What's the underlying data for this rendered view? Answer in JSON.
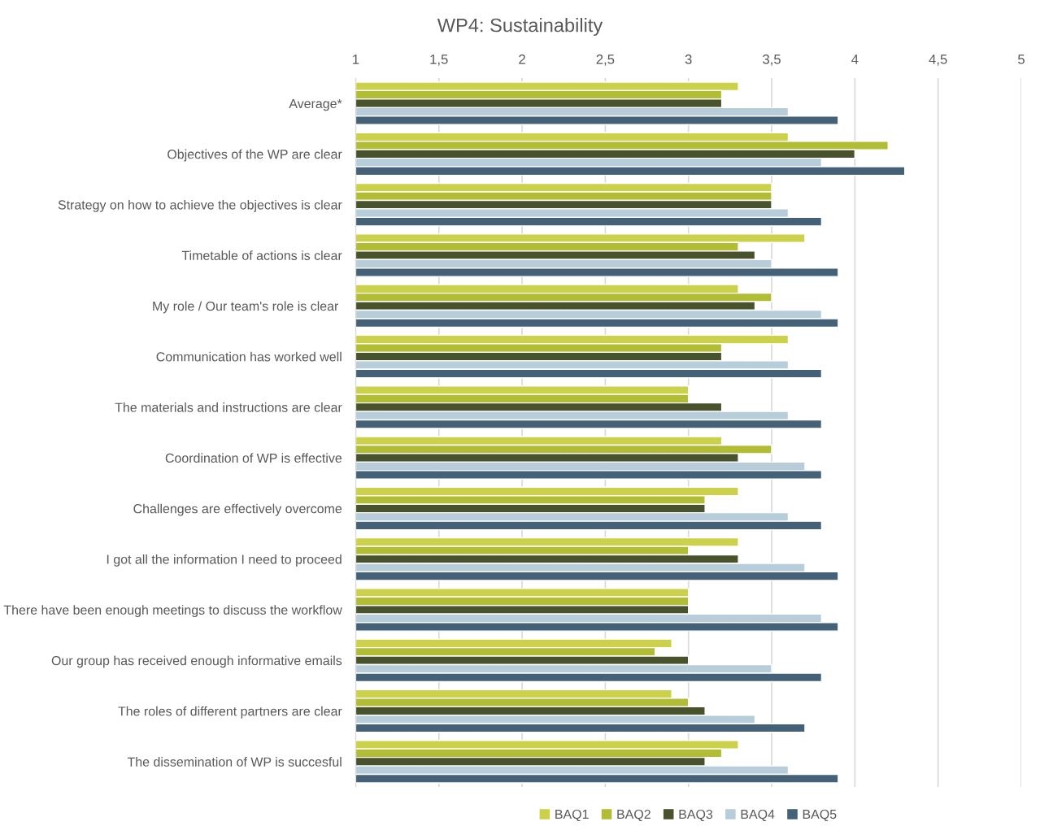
{
  "chart_data": {
    "type": "bar",
    "orientation": "horizontal",
    "title": "WP4: Sustainability",
    "categories": [
      "Average*",
      "Objectives of the WP are clear",
      "Strategy on how to achieve the objectives is clear",
      "Timetable of actions is clear",
      "My role / Our team's role is clear ",
      "Communication has worked well",
      "The materials and instructions are clear",
      "Coordination of WP is effective",
      "Challenges are effectively overcome",
      "I got all the information I need to proceed",
      "There have been enough meetings to discuss the workflow",
      "Our group has received enough informative emails",
      "The roles of different partners are clear",
      "The dissemination of WP is succesful"
    ],
    "series": [
      {
        "name": "BAQ1",
        "color": "#cbd14a",
        "values": [
          3.3,
          3.6,
          3.5,
          3.7,
          3.3,
          3.6,
          3.0,
          3.2,
          3.3,
          3.3,
          3.0,
          2.9,
          2.9,
          3.3
        ]
      },
      {
        "name": "BAQ2",
        "color": "#b2bd36",
        "values": [
          3.2,
          4.2,
          3.5,
          3.3,
          3.5,
          3.2,
          3.0,
          3.5,
          3.1,
          3.0,
          3.0,
          2.8,
          3.0,
          3.2
        ]
      },
      {
        "name": "BAQ3",
        "color": "#48532e",
        "values": [
          3.2,
          4.0,
          3.5,
          3.4,
          3.4,
          3.2,
          3.2,
          3.3,
          3.1,
          3.3,
          3.0,
          3.0,
          3.1,
          3.1
        ]
      },
      {
        "name": "BAQ4",
        "color": "#b7cdda",
        "values": [
          3.6,
          3.8,
          3.6,
          3.5,
          3.8,
          3.6,
          3.6,
          3.7,
          3.6,
          3.7,
          3.8,
          3.5,
          3.4,
          3.6
        ]
      },
      {
        "name": "BAQ5",
        "color": "#446177",
        "values": [
          3.9,
          4.3,
          3.8,
          3.9,
          3.9,
          3.8,
          3.8,
          3.8,
          3.8,
          3.9,
          3.9,
          3.8,
          3.7,
          3.9
        ]
      }
    ],
    "xlim": [
      1,
      5
    ],
    "xticks": [
      1,
      {
        "value": 1.5,
        "label": "1,5"
      },
      2,
      {
        "value": 2.5,
        "label": "2,5"
      },
      3,
      {
        "value": 3.5,
        "label": "3,5"
      },
      4,
      {
        "value": 4.5,
        "label": "4,5"
      },
      5
    ],
    "grid": "x",
    "legend": "bottom"
  }
}
